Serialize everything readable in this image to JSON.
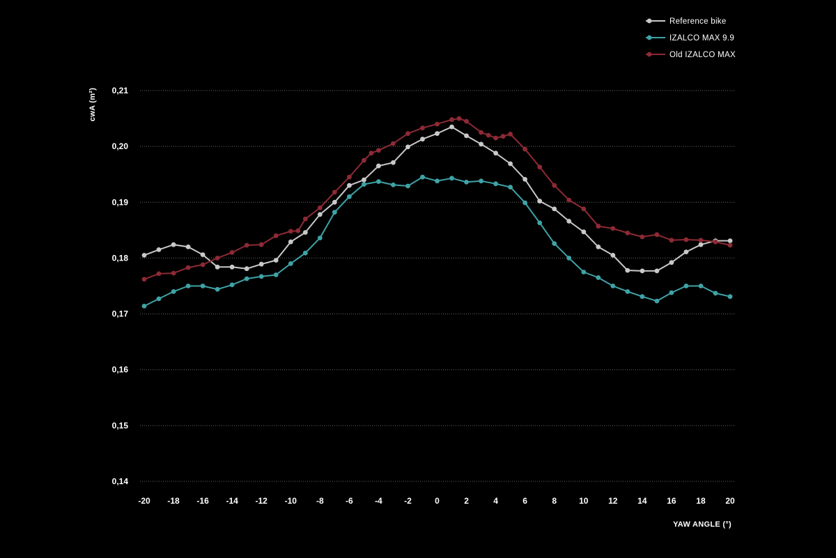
{
  "chart_data": {
    "type": "line",
    "ylabel": "cwA (m²)",
    "xlabel": "YAW ANGLE (°)",
    "ylim": [
      0.14,
      0.21
    ],
    "yticks": [
      "0,21",
      "0,20",
      "0,19",
      "0,18",
      "0,17",
      "0,16",
      "0,15",
      "0,14"
    ],
    "ytick_values": [
      0.21,
      0.2,
      0.19,
      0.18,
      0.17,
      0.16,
      0.15,
      0.14
    ],
    "xlim": [
      -20,
      20
    ],
    "xticks": [
      "-20",
      "-18",
      "-16",
      "-14",
      "-12",
      "-10",
      "-8",
      "-6",
      "-4",
      "-2",
      "0",
      "2",
      "4",
      "6",
      "8",
      "10",
      "12",
      "14",
      "16",
      "18",
      "20"
    ],
    "xtick_values": [
      -20,
      -18,
      -16,
      -14,
      -12,
      -10,
      -8,
      -6,
      -4,
      -2,
      0,
      2,
      4,
      6,
      8,
      10,
      12,
      14,
      16,
      18,
      20
    ],
    "grid": "horizontal dotted",
    "legend_position": "top-right",
    "series": [
      {
        "name": "Reference bike",
        "color": "#c9c9c9",
        "x": [
          -20,
          -19,
          -18,
          -17,
          -16,
          -15,
          -14,
          -13,
          -12,
          -11,
          -10,
          -9,
          -8,
          -7,
          -6,
          -5,
          -4,
          -3,
          -2,
          -1,
          0,
          1,
          2,
          3,
          4,
          5,
          6,
          7,
          8,
          9,
          10,
          11,
          12,
          13,
          14,
          15,
          16,
          17,
          18,
          19,
          20
        ],
        "y": [
          0.1805,
          0.1815,
          0.1824,
          0.182,
          0.1806,
          0.1784,
          0.1784,
          0.1781,
          0.1789,
          0.1796,
          0.1829,
          0.1846,
          0.1878,
          0.19,
          0.193,
          0.194,
          0.1965,
          0.1971,
          0.1999,
          0.2013,
          0.2023,
          0.2035,
          0.2019,
          0.2004,
          0.1988,
          0.1969,
          0.1941,
          0.1902,
          0.1888,
          0.1866,
          0.1847,
          0.182,
          0.1805,
          0.1778,
          0.1777,
          0.1777,
          0.1792,
          0.1811,
          0.1824,
          0.1831,
          0.1831
        ]
      },
      {
        "name": "IZALCO MAX 9.9",
        "color": "#3fa3a6",
        "x": [
          -20,
          -19,
          -18,
          -17,
          -16,
          -15,
          -14,
          -13,
          -12,
          -11,
          -10,
          -9,
          -8,
          -7,
          -6,
          -5,
          -4,
          -3,
          -2,
          -1,
          0,
          1,
          2,
          3,
          4,
          5,
          6,
          7,
          8,
          9,
          10,
          11,
          12,
          13,
          14,
          15,
          16,
          17,
          18,
          19,
          20
        ],
        "y": [
          0.1714,
          0.1727,
          0.174,
          0.175,
          0.175,
          0.1744,
          0.1752,
          0.1763,
          0.1767,
          0.177,
          0.179,
          0.1809,
          0.1836,
          0.1882,
          0.191,
          0.1932,
          0.1937,
          0.1931,
          0.1929,
          0.1945,
          0.1938,
          0.1943,
          0.1936,
          0.1938,
          0.1933,
          0.1927,
          0.1899,
          0.1863,
          0.1826,
          0.18,
          0.1775,
          0.1765,
          0.175,
          0.174,
          0.1731,
          0.1723,
          0.1738,
          0.175,
          0.175,
          0.1737,
          0.1731
        ]
      },
      {
        "name": "Old IZALCO MAX",
        "color": "#8e2a35",
        "x": [
          -20,
          -19,
          -18,
          -17,
          -16,
          -15,
          -14,
          -13,
          -12,
          -11,
          -10,
          -9.5,
          -9,
          -8,
          -7,
          -6,
          -5,
          -4.5,
          -4,
          -3,
          -2,
          -1,
          0,
          1,
          1.5,
          2,
          3,
          3.5,
          4,
          4.5,
          5,
          6,
          7,
          8,
          9,
          10,
          11,
          12,
          13,
          14,
          15,
          16,
          17,
          18,
          19,
          20
        ],
        "y": [
          0.1762,
          0.1772,
          0.1773,
          0.1783,
          0.1788,
          0.18,
          0.181,
          0.1823,
          0.1824,
          0.184,
          0.1848,
          0.1849,
          0.187,
          0.189,
          0.1918,
          0.1945,
          0.1975,
          0.1988,
          0.1993,
          0.2005,
          0.2023,
          0.2033,
          0.204,
          0.2048,
          0.205,
          0.2045,
          0.2025,
          0.202,
          0.2015,
          0.2018,
          0.2022,
          0.1995,
          0.1963,
          0.193,
          0.1904,
          0.1888,
          0.1857,
          0.1853,
          0.1845,
          0.1838,
          0.1842,
          0.1832,
          0.1833,
          0.1832,
          0.1829,
          0.1823
        ]
      }
    ]
  }
}
